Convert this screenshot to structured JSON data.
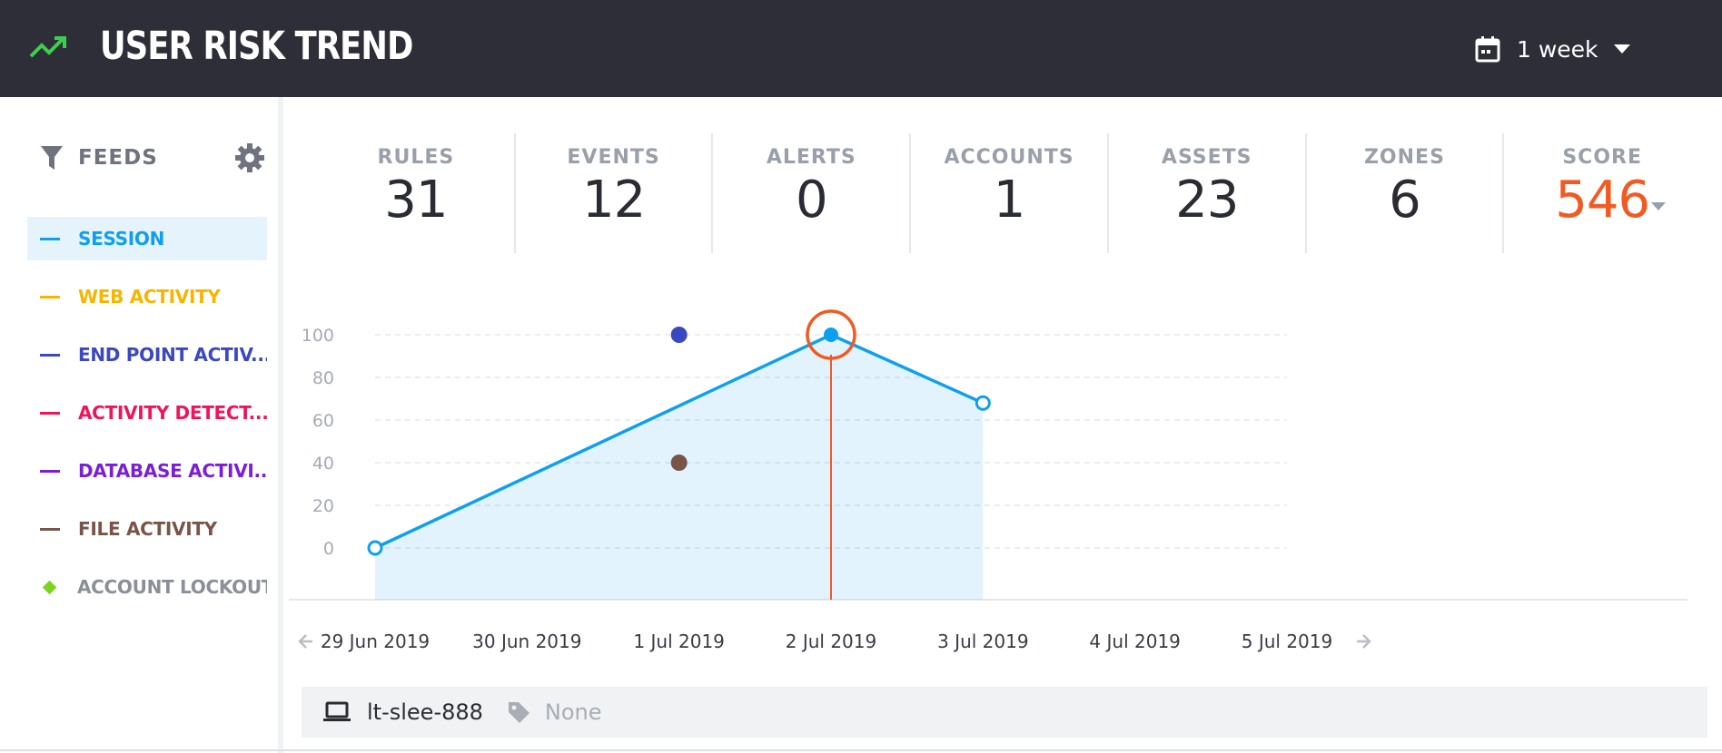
{
  "header": {
    "title": "USER RISK TREND",
    "trend_icon": "trending-up-icon",
    "period": {
      "label": "1 week",
      "icon": "calendar-icon"
    }
  },
  "sidebar": {
    "heading": "FEEDS",
    "filter_icon": "filter-icon",
    "settings_icon": "gear-icon",
    "feeds": [
      {
        "label": "SESSION",
        "color": "#0ea0ee",
        "marker": "dash",
        "active": true
      },
      {
        "label": "WEB ACTIVITY",
        "color": "#f7b500",
        "marker": "dash",
        "active": false
      },
      {
        "label": "END POINT ACTIV...",
        "color": "#3a48c1",
        "marker": "dash",
        "active": false
      },
      {
        "label": "ACTIVITY DETECT...",
        "color": "#f0145a",
        "marker": "dash",
        "active": false
      },
      {
        "label": "DATABASE ACTIVI...",
        "color": "#7b1fd6",
        "marker": "dash",
        "active": false
      },
      {
        "label": "FILE ACTIVITY",
        "color": "#795548",
        "marker": "dash",
        "active": false
      },
      {
        "label": "ACCOUNT LOCKOUT",
        "color": "#8a8f99",
        "marker_color": "#7ed321",
        "marker": "diamond",
        "active": false
      }
    ]
  },
  "stats": [
    {
      "label": "RULES",
      "value": "31"
    },
    {
      "label": "EVENTS",
      "value": "12"
    },
    {
      "label": "ALERTS",
      "value": "0"
    },
    {
      "label": "ACCOUNTS",
      "value": "1"
    },
    {
      "label": "ASSETS",
      "value": "23"
    },
    {
      "label": "ZONES",
      "value": "6"
    },
    {
      "label": "SCORE",
      "value": "546"
    }
  ],
  "chart_data": {
    "type": "line",
    "x": [
      "29 Jun 2019",
      "30 Jun 2019",
      "1 Jul 2019",
      "2 Jul 2019",
      "3 Jul 2019",
      "4 Jul 2019",
      "5 Jul 2019"
    ],
    "y_ticks": [
      0,
      20,
      40,
      60,
      80,
      100
    ],
    "ylim": [
      0,
      100
    ],
    "grid": true,
    "series": [
      {
        "feed": "SESSION",
        "color": "#0ea0ee",
        "kind": "area-line",
        "points": [
          [
            "29 Jun 2019",
            0
          ],
          [
            "2 Jul 2019",
            100
          ],
          [
            "3 Jul 2019",
            68
          ]
        ]
      },
      {
        "feed": "END POINT ACTIV...",
        "color": "#3a48c1",
        "kind": "point",
        "points": [
          [
            "1 Jul 2019",
            100
          ]
        ]
      },
      {
        "feed": "FILE ACTIVITY",
        "color": "#795548",
        "kind": "point",
        "points": [
          [
            "1 Jul 2019",
            40
          ]
        ]
      }
    ],
    "selected": {
      "x": "2 Jul 2019",
      "y": 100,
      "color": "#f15a22"
    },
    "nav": {
      "prev_icon": "arrow-left-icon",
      "next_icon": "arrow-right-icon"
    }
  },
  "footer": {
    "host_icon": "laptop-icon",
    "host": "lt-slee-888",
    "tag_icon": "tag-icon",
    "tag": "None"
  }
}
